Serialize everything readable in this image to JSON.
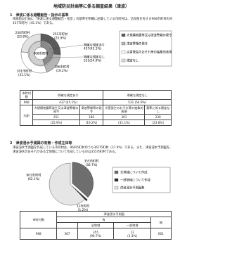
{
  "title": "地域防災計画等に係る調査結果（津波）",
  "section1": {
    "heading": "1　津波に係る避難勧告・指示の基準",
    "body": "地域防災計画に「津波に係る避難勧告・指示」の基準を明確に記載している市町村は、沿岸部を有する968市町村の内437市町村（45.1%）である。",
    "chart": {
      "center": "968市町村",
      "inner": [
        {
          "name": "明確な規定あり",
          "text": "437(45.1%)",
          "value": 437
        },
        {
          "name": "明確な規定なし",
          "text": "531(54.9%)",
          "value": 531
        }
      ],
      "outer": [
        {
          "count": "251市町村",
          "share": "(25.9%)",
          "value": 251
        },
        {
          "count": "186市町村",
          "share": "(19.2%)",
          "value": 186
        },
        {
          "count": "301市町村",
          "share": "(31.1%)",
          "value": 301
        },
        {
          "count": "230市町村",
          "share": "(23.8%)",
          "value": 230
        }
      ],
      "legend": [
        "大規模地震等又は津波警報の発令",
        "津波警報の発令",
        "災害発生のおそれ等の抽象的表現",
        "規定なし"
      ],
      "colors": [
        "#5a5a5a",
        "#b5b5b5",
        "#ffffff",
        "#e2e2e2"
      ],
      "inner_colors": [
        "#8a8a8a",
        "#d0d0d0"
      ]
    },
    "table": {
      "header": [
        "市町村数",
        "明確な規定あり",
        "明確な規定なし"
      ],
      "row": [
        "968",
        "437 (45.1%)",
        "531 (54.9%)"
      ],
      "breakdown_label": "内訳",
      "breakdown": [
        "大規模地震等発生又は津波警報の発令",
        "津波警報等の発令",
        "災害発生のおそれ等の抽象的表現",
        "基準に係る規定なし"
      ],
      "counts": [
        "251",
        "186",
        "301",
        "230"
      ],
      "shares": [
        "(25.9%)",
        "(19.2%)",
        "(31.1%)",
        "(23.8%)"
      ]
    }
  },
  "section2": {
    "heading": "2　津波浸水予測図の有無・作成主体等",
    "body": "津波浸水予測図を作成している市町村は、968市町村のうち367市町村（37.9%）である。また、津波浸水予測図を、津波浸水のおそれがある全地域について作成しているのは355市町村である。",
    "chart": {
      "slices": [
        {
          "count": "355市町村",
          "share": "(36.7%)",
          "value": 355
        },
        {
          "count": "12市町村",
          "share": "(1.2%)",
          "value": 12
        },
        {
          "count": "601市町村",
          "share": "(62.1%)",
          "value": 601
        }
      ],
      "legend": [
        "全地域について作成",
        "一部地域について作成",
        "津波浸水予測図無"
      ],
      "colors": [
        "#6e6e6e",
        "#2a2a2a",
        "#e6e6e6"
      ]
    },
    "table": {
      "count_label": "市町村数",
      "map": "津波浸水予測図",
      "yes": "有",
      "no": "無",
      "all": "全地域",
      "part": "一部地域",
      "row": [
        "968",
        "367",
        "355",
        "12",
        "601"
      ],
      "shares": [
        "(96.7%)",
        "(3.3%)"
      ]
    }
  }
}
